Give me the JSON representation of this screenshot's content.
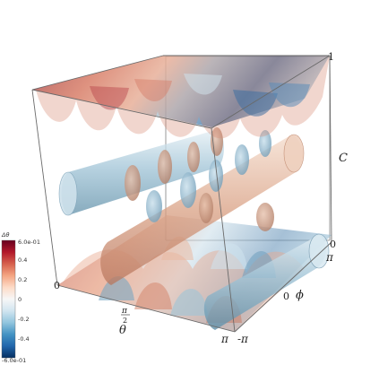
{
  "figure": {
    "colorbar": {
      "title": "Δθ",
      "ticks": [
        "6.0e-01",
        "0.4",
        "0.2",
        "0",
        "-0.2",
        "-0.4",
        "-6.0e-01"
      ],
      "range": [
        -0.6,
        0.6
      ],
      "colors": [
        "#67001f",
        "#b2182b",
        "#d6604d",
        "#f4a582",
        "#fddbc7",
        "#f7f7f7",
        "#d1e5f0",
        "#92c5de",
        "#4393c3",
        "#2166ac",
        "#053061"
      ]
    },
    "axes": {
      "theta": {
        "label": "θ",
        "ticks": [
          "0",
          "π",
          "2",
          "π"
        ]
      },
      "phi": {
        "label": "ϕ",
        "ticks": [
          "-π",
          "0",
          "π"
        ]
      },
      "c": {
        "label": "C",
        "ticks": [
          "0",
          "1"
        ]
      }
    }
  }
}
